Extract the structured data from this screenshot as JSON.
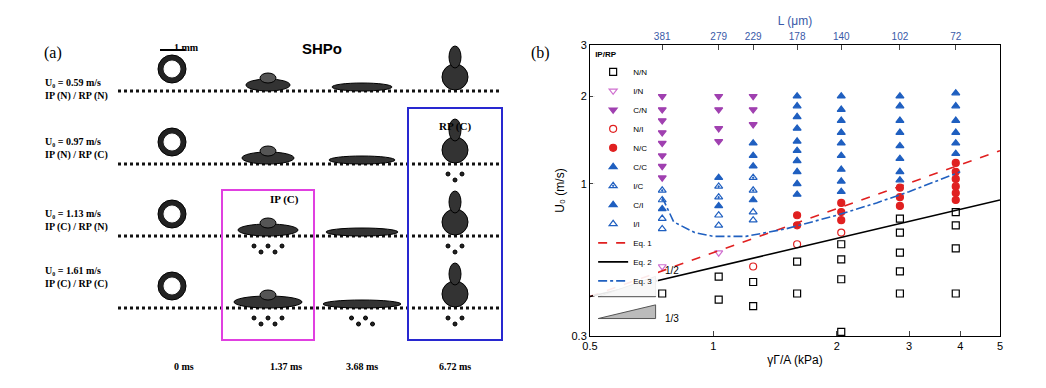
{
  "panel_a": {
    "label": "(a)",
    "title": "SHPo",
    "scale_bar": "1 mm",
    "rows": [
      {
        "speed": "U₀ = 0.59 m/s",
        "outcome": "IP (N) / RP (N)"
      },
      {
        "speed": "U₀ = 0.97 m/s",
        "outcome": "IP (N) / RP (C)"
      },
      {
        "speed": "U₀ = 1.13 m/s",
        "outcome": "IP (C) / RP (N)"
      },
      {
        "speed": "U₀ = 1.61 m/s",
        "outcome": "IP (C) / RP (C)"
      }
    ],
    "times": [
      "0 ms",
      "1.37 ms",
      "3.68 ms",
      "6.72 ms"
    ],
    "boxes": [
      {
        "label": "IP (C)",
        "color": "#e040e0"
      },
      {
        "label": "RP (C)",
        "color": "#2828d0"
      }
    ]
  },
  "chart_data": {
    "type": "scatter",
    "panel_label": "(b)",
    "x_label": "γΓ/A (kPa)",
    "y_label": "U₀ (m/s)",
    "x2_label": "L (μm)",
    "log": true,
    "grid": false,
    "xlim": [
      0.5,
      5
    ],
    "xticks": [
      0.5,
      1,
      2,
      3,
      4,
      5
    ],
    "ylim": [
      0.3,
      3
    ],
    "yticks": [
      0.3,
      1,
      2,
      3
    ],
    "x2ticks": [
      {
        "value": 0.75,
        "label": "381"
      },
      {
        "value": 1.03,
        "label": "279"
      },
      {
        "value": 1.25,
        "label": "229"
      },
      {
        "value": 1.6,
        "label": "178"
      },
      {
        "value": 2.05,
        "label": "140"
      },
      {
        "value": 2.85,
        "label": "102"
      },
      {
        "value": 3.9,
        "label": "72"
      }
    ],
    "legend": "upper left",
    "legend_title": "IP/RP",
    "annotations": [
      "1/2",
      "1/3"
    ],
    "series": [
      {
        "name": "N/N",
        "type": "scatter",
        "marker": "square-open",
        "color": "#000000",
        "x": [
          0.75,
          1.03,
          1.03,
          1.25,
          1.25,
          1.6,
          1.6,
          2.05,
          2.05,
          2.05,
          2.05,
          2.85,
          2.85,
          2.85,
          2.85,
          2.85,
          3.9,
          3.9,
          3.9,
          3.9
        ],
        "values": [
          0.42,
          0.48,
          0.4,
          0.46,
          0.38,
          0.54,
          0.42,
          0.62,
          0.55,
          0.47,
          0.31,
          0.76,
          0.68,
          0.58,
          0.5,
          0.42,
          0.8,
          0.72,
          0.6,
          0.42
        ]
      },
      {
        "name": "I/N",
        "type": "scatter",
        "marker": "triangle-down-open",
        "color": "#d070d0",
        "x": [
          0.75,
          1.03
        ],
        "values": [
          0.52,
          0.58
        ]
      },
      {
        "name": "C/N",
        "type": "scatter",
        "marker": "triangle-down",
        "color": "#a040b0",
        "x": [
          0.75,
          0.75,
          0.75,
          0.75,
          0.75,
          0.75,
          0.75,
          0.75,
          1.03,
          1.03,
          1.03,
          1.03,
          1.25,
          1.25,
          1.25
        ],
        "values": [
          2.0,
          1.8,
          1.65,
          1.5,
          1.38,
          1.25,
          1.15,
          1.05,
          2.0,
          1.8,
          1.55,
          1.4,
          2.0,
          1.8,
          1.6
        ]
      },
      {
        "name": "N/I",
        "type": "scatter",
        "marker": "circle-open",
        "color": "#e02020",
        "x": [
          1.25,
          1.6,
          2.05
        ],
        "values": [
          0.52,
          0.62,
          0.68
        ]
      },
      {
        "name": "N/C",
        "type": "scatter",
        "marker": "circle",
        "color": "#e02020",
        "x": [
          1.6,
          1.6,
          2.05,
          2.05,
          2.05,
          2.85,
          2.85,
          2.85,
          3.9,
          3.9,
          3.9,
          3.9,
          3.9,
          3.9
        ],
        "values": [
          0.78,
          0.72,
          0.86,
          0.8,
          0.75,
          0.97,
          0.9,
          0.84,
          1.18,
          1.1,
          1.04,
          0.98,
          0.93,
          0.88
        ]
      },
      {
        "name": "C/C",
        "type": "scatter",
        "marker": "triangle-up",
        "color": "#1f5fc0",
        "x": [
          1.03,
          1.25,
          1.25,
          1.25,
          1.6,
          1.6,
          1.6,
          1.6,
          1.6,
          1.6,
          1.6,
          1.6,
          1.6,
          2.05,
          2.05,
          2.05,
          2.05,
          2.05,
          2.05,
          2.05,
          2.05,
          2.05,
          2.85,
          2.85,
          2.85,
          2.85,
          2.85,
          2.85,
          2.85,
          2.85,
          3.9,
          3.9,
          3.9,
          3.9,
          3.9,
          3.9
        ],
        "values": [
          1.05,
          1.38,
          1.25,
          1.15,
          2.0,
          1.85,
          1.7,
          1.55,
          1.4,
          1.3,
          1.2,
          1.1,
          1.0,
          2.0,
          1.8,
          1.65,
          1.5,
          1.38,
          1.25,
          1.12,
          1.02,
          0.94,
          2.0,
          1.85,
          1.65,
          1.5,
          1.35,
          1.22,
          1.1,
          1.03,
          2.05,
          1.85,
          1.65,
          1.5,
          1.38,
          1.27
        ]
      },
      {
        "name": "I/C",
        "type": "scatter",
        "marker": "triangle-up-open-dot",
        "color": "#1f5fc0",
        "x": [
          0.75,
          0.75,
          1.03,
          1.03,
          1.25,
          1.25
        ],
        "values": [
          0.95,
          0.88,
          0.98,
          0.9,
          1.05,
          0.95
        ]
      },
      {
        "name": "C/I",
        "type": "scatter",
        "marker": "triangle-up-dot",
        "color": "#1f5fc0",
        "x": [
          0.75,
          1.03,
          1.25,
          1.6
        ],
        "values": [
          0.82,
          0.84,
          0.88,
          0.92
        ]
      },
      {
        "name": "I/I",
        "type": "scatter",
        "marker": "triangle-up-open",
        "color": "#1f5fc0",
        "x": [
          0.75,
          0.75,
          1.03,
          1.03,
          1.25,
          1.25
        ],
        "values": [
          0.76,
          0.7,
          0.78,
          0.72,
          0.8,
          0.75
        ]
      },
      {
        "name": "Eq. 1",
        "type": "line",
        "line_style": "dashed",
        "color": "#e02020",
        "x": [
          0.5,
          5
        ],
        "values": [
          0.41,
          1.3
        ]
      },
      {
        "name": "Eq. 2",
        "type": "line",
        "line_style": "solid",
        "color": "#000000",
        "x": [
          0.5,
          5
        ],
        "values": [
          0.41,
          0.88
        ]
      },
      {
        "name": "Eq. 3",
        "type": "line",
        "line_style": "dashdot",
        "color": "#2060c0",
        "x": [
          0.75,
          0.8,
          0.9,
          1.0,
          1.2,
          1.5,
          2.0,
          2.5,
          3.0,
          3.5,
          4.0
        ],
        "values": [
          0.9,
          0.74,
          0.68,
          0.66,
          0.66,
          0.7,
          0.78,
          0.86,
          0.94,
          1.02,
          1.1
        ]
      }
    ]
  }
}
